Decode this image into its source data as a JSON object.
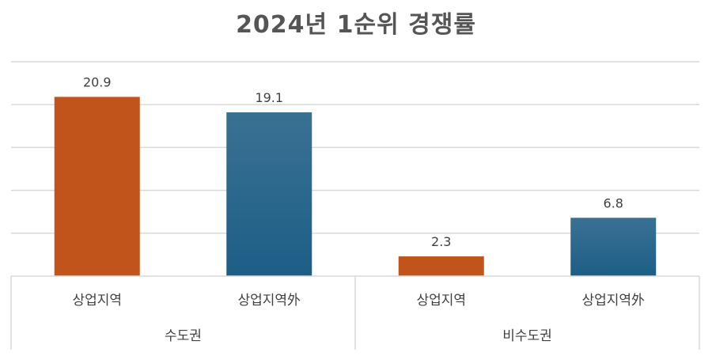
{
  "chart_data": {
    "type": "bar",
    "title": "2024년 1순위 경쟁률",
    "groups": [
      {
        "name": "수도권",
        "categories": [
          "상업지역",
          "상업지역外"
        ]
      },
      {
        "name": "비수도권",
        "categories": [
          "상업지역",
          "상업지역外"
        ]
      }
    ],
    "categories": [
      "상업지역",
      "상업지역外",
      "상업지역",
      "상업지역外"
    ],
    "values": [
      20.9,
      19.1,
      2.3,
      6.8
    ],
    "value_labels": [
      "20.9",
      "19.1",
      "2.3",
      "6.8"
    ],
    "ylim": [
      0,
      25
    ],
    "grid": true,
    "legend": "none",
    "colors": {
      "상업지역": "#c0541a",
      "상업지역外": "#1d5e86",
      "상업지역外_light": "#3a7193",
      "gridline": "#d9d9d9",
      "text": "#404040",
      "title": "#555555"
    }
  }
}
